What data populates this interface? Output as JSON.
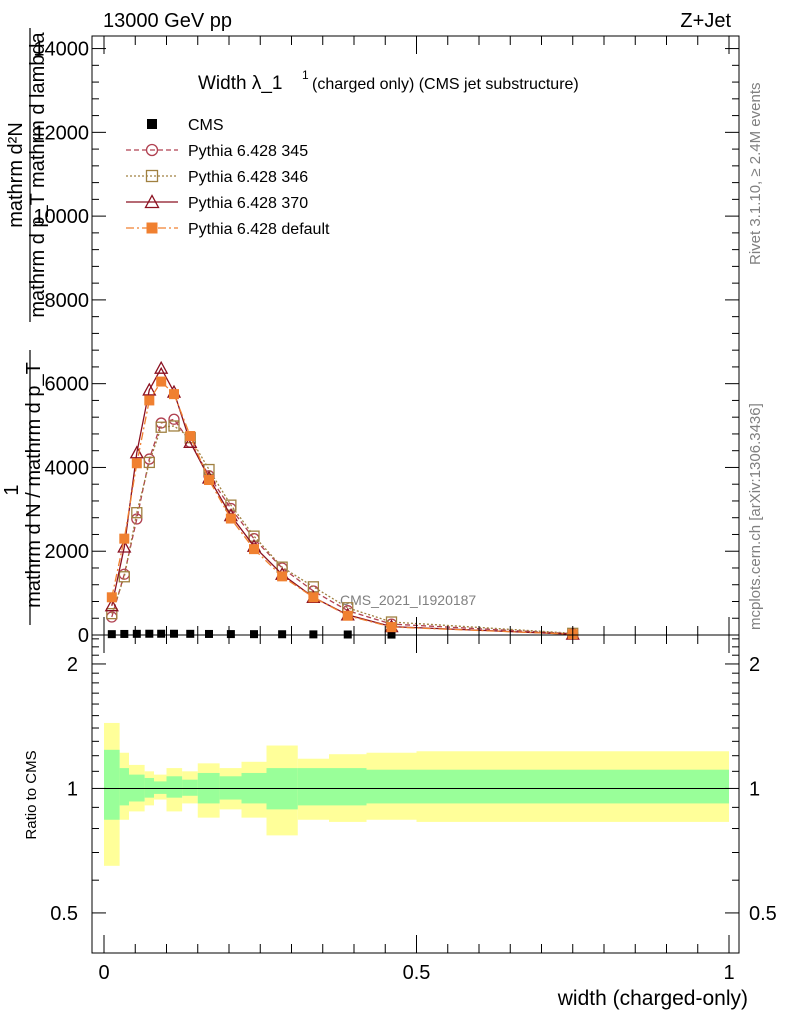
{
  "header": {
    "left": "13000 GeV pp",
    "right": "Z+Jet"
  },
  "side": {
    "rivet": "Rivet 3.1.10, ≥ 2.4M events",
    "mcplots": "mcplots.cern.ch [arXiv:1306.3436]"
  },
  "chart_data": [
    {
      "type": "line",
      "title": "Width λ_1¹ (charged only) (CMS jet substructure)",
      "title_main": "Width λ_1",
      "title_sup": "1",
      "title_rest": "(charged only) (CMS jet substructure)",
      "watermark": "CMS_2021_I1920187",
      "ylabel_top": "mathrm d²N",
      "ylabel_top_den": "mathrm d p_T mathrm d lambda",
      "ylabel_one": "1",
      "ylabel_bottom": "mathrm d N / mathrm d p_T",
      "ylim": [
        0,
        14300
      ],
      "yticks": [
        0,
        2000,
        4000,
        6000,
        8000,
        10000,
        12000,
        14000
      ],
      "yticklabels": [
        "0",
        "2000",
        "4000",
        "6000",
        "8000",
        "10000",
        "12000",
        "14000"
      ],
      "x": [
        0.0125,
        0.0325,
        0.0525,
        0.0725,
        0.0915,
        0.112,
        0.138,
        0.168,
        0.203,
        0.24,
        0.285,
        0.335,
        0.39,
        0.46,
        0.75
      ],
      "series": [
        {
          "name": "CMS",
          "color": "#000000",
          "marker": "square",
          "values": [
            20,
            25,
            28,
            30,
            30,
            30,
            28,
            25,
            22,
            20,
            18,
            15,
            12,
            10,
            5
          ]
        },
        {
          "name": "Pythia 6.428 345",
          "color": "#b04050",
          "marker": "circle-open",
          "dash": "5,3",
          "values": [
            430,
            1450,
            2770,
            4200,
            5060,
            5150,
            4600,
            3800,
            3020,
            2300,
            1600,
            1050,
            580,
            260,
            30
          ]
        },
        {
          "name": "Pythia 6.428 346",
          "color": "#a08040",
          "marker": "square-open",
          "dash": "2,2",
          "values": [
            510,
            1390,
            2920,
            4120,
            4960,
            4990,
            4710,
            3950,
            3100,
            2360,
            1620,
            1150,
            650,
            310,
            40
          ]
        },
        {
          "name": "Pythia 6.428 370",
          "color": "#8b1020",
          "marker": "triangle-open",
          "dash": "",
          "values": [
            700,
            2100,
            4350,
            5850,
            6370,
            5800,
            4600,
            3750,
            2850,
            2120,
            1450,
            900,
            480,
            200,
            20
          ]
        },
        {
          "name": "Pythia 6.428 default",
          "color": "#f08030",
          "marker": "square-filled",
          "dash": "8,3,2,3",
          "values": [
            900,
            2300,
            4100,
            5600,
            6050,
            5750,
            4750,
            3700,
            2780,
            2050,
            1400,
            900,
            460,
            190,
            20
          ]
        }
      ]
    },
    {
      "type": "area",
      "ylabel": "Ratio to CMS",
      "xlabel": "width (charged-only)",
      "xlim": [
        0,
        1
      ],
      "xticks": [
        0,
        0.5,
        1
      ],
      "xticklabels": [
        "0",
        "0.5",
        "1"
      ],
      "ylim": [
        0.4,
        2.35
      ],
      "log_y": true,
      "yticks": [
        0.5,
        1,
        2
      ],
      "yticklabels": [
        "0.5",
        "1",
        "2"
      ],
      "bin_edges": [
        0,
        0.025,
        0.04,
        0.065,
        0.08,
        0.1,
        0.125,
        0.15,
        0.185,
        0.22,
        0.26,
        0.31,
        0.36,
        0.42,
        0.5,
        1.0
      ],
      "green_band": [
        [
          0.84,
          1.24
        ],
        [
          0.91,
          1.12
        ],
        [
          0.93,
          1.08
        ],
        [
          0.95,
          1.06
        ],
        [
          0.97,
          1.04
        ],
        [
          0.95,
          1.07
        ],
        [
          0.96,
          1.05
        ],
        [
          0.92,
          1.09
        ],
        [
          0.94,
          1.07
        ],
        [
          0.92,
          1.09
        ],
        [
          0.89,
          1.12
        ],
        [
          0.91,
          1.12
        ],
        [
          0.91,
          1.12
        ],
        [
          0.92,
          1.11
        ],
        [
          0.92,
          1.11
        ]
      ],
      "yellow_band": [
        [
          0.65,
          1.44
        ],
        [
          0.84,
          1.22
        ],
        [
          0.88,
          1.14
        ],
        [
          0.91,
          1.1
        ],
        [
          0.94,
          1.08
        ],
        [
          0.88,
          1.12
        ],
        [
          0.92,
          1.1
        ],
        [
          0.85,
          1.15
        ],
        [
          0.89,
          1.12
        ],
        [
          0.85,
          1.16
        ],
        [
          0.77,
          1.27
        ],
        [
          0.84,
          1.18
        ],
        [
          0.83,
          1.21
        ],
        [
          0.84,
          1.22
        ],
        [
          0.83,
          1.23
        ]
      ]
    }
  ]
}
